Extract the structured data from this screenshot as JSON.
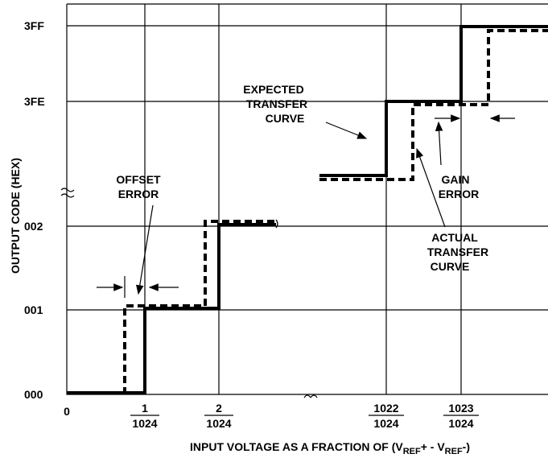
{
  "y_axis": {
    "title": "OUTPUT CODE (HEX)",
    "labels": [
      "3FF",
      "3FE",
      "002",
      "001",
      "000"
    ]
  },
  "x_axis": {
    "zero": "0",
    "fractions": [
      {
        "numerator": "1",
        "denominator": "1024"
      },
      {
        "numerator": "2",
        "denominator": "1024"
      },
      {
        "numerator": "1022",
        "denominator": "1024"
      },
      {
        "numerator": "1023",
        "denominator": "1024"
      }
    ],
    "title": [
      "INPUT VOLTAGE AS A FRACTION OF (V",
      "REF",
      "+ - V",
      "REF",
      "-)"
    ]
  },
  "annotations": {
    "expected": [
      "EXPECTED",
      "TRANSFER",
      "CURVE"
    ],
    "offset": [
      "OFFSET",
      "ERROR"
    ],
    "gain": [
      "GAIN",
      "ERROR"
    ],
    "actual": [
      "ACTUAL",
      "TRANSFER",
      "CURVE"
    ]
  }
}
